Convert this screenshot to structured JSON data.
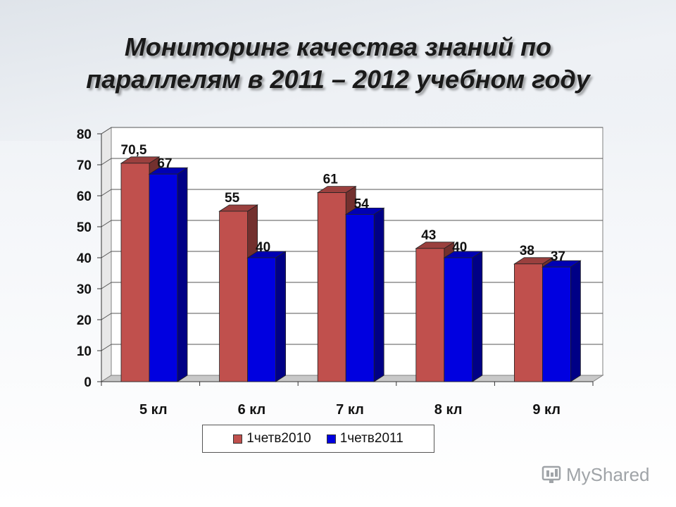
{
  "title_line1": "Мониторинг качества знаний по",
  "title_line2": "параллелям в 2011 – 2012 учебном году",
  "chart_data": {
    "type": "bar",
    "title": "Мониторинг качества знаний по параллелям в 2011 – 2012 учебном году",
    "categories": [
      "5 кл",
      "6 кл",
      "7 кл",
      "8 кл",
      "9 кл"
    ],
    "series": [
      {
        "name": "1четв2010",
        "values": [
          70.5,
          55,
          61,
          43,
          38
        ],
        "labels": [
          "70,5",
          "55",
          "61",
          "43",
          "38"
        ],
        "color": "#c0504d"
      },
      {
        "name": "1четв2011",
        "values": [
          67,
          40,
          54,
          40,
          37
        ],
        "labels": [
          "67",
          "40",
          "54",
          "40",
          "37"
        ],
        "color": "#0000e0"
      }
    ],
    "yticks": [
      "0",
      "10",
      "20",
      "30",
      "40",
      "50",
      "60",
      "70",
      "80"
    ],
    "ylim": [
      0,
      80
    ],
    "grid": true,
    "legend_position": "bottom"
  },
  "watermark": "MyShared"
}
